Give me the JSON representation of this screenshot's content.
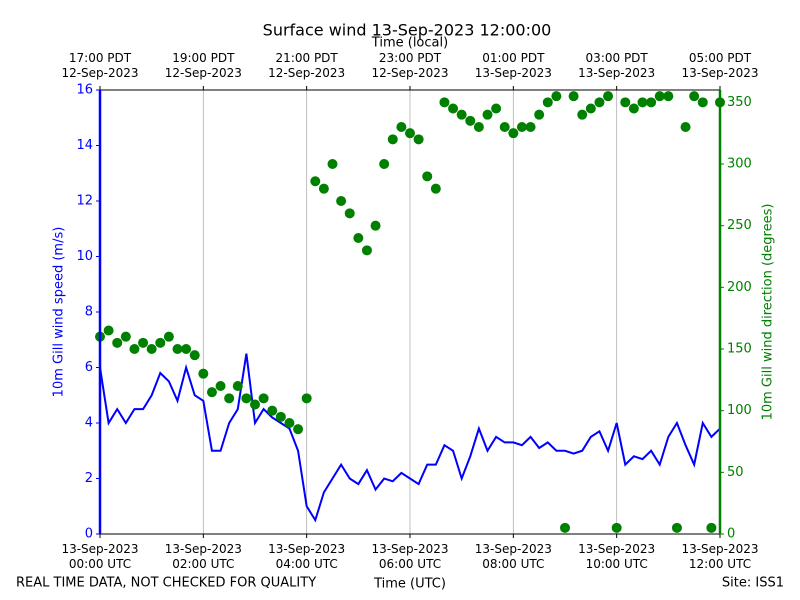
{
  "chart_data": {
    "type": "line",
    "title": "Surface wind 13-Sep-2023 12:00:00",
    "x_label": "Time (UTC)",
    "x2_label": "Time (local)",
    "y_label": "10m Gill wind speed (m/s)",
    "y2_label": "10m Gill wind direction (degrees)",
    "footer_left": "REAL TIME DATA, NOT CHECKED FOR QUALITY",
    "footer_right": "Site: ISS1",
    "grid": "x",
    "xlim": [
      "2023-09-13 00:00",
      "2023-09-13 12:00"
    ],
    "xticks": [
      {
        "value": "2023-09-13 00:00",
        "label": "13-Sep-2023\n00:00 UTC"
      },
      {
        "value": "2023-09-13 02:00",
        "label": "13-Sep-2023\n02:00 UTC"
      },
      {
        "value": "2023-09-13 04:00",
        "label": "13-Sep-2023\n04:00 UTC"
      },
      {
        "value": "2023-09-13 06:00",
        "label": "13-Sep-2023\n06:00 UTC"
      },
      {
        "value": "2023-09-13 08:00",
        "label": "13-Sep-2023\n08:00 UTC"
      },
      {
        "value": "2023-09-13 10:00",
        "label": "13-Sep-2023\n10:00 UTC"
      },
      {
        "value": "2023-09-13 12:00",
        "label": "13-Sep-2023\n12:00 UTC"
      }
    ],
    "x2ticks": [
      {
        "value": "2023-09-13 00:00",
        "label": "17:00 PDT\n12-Sep-2023"
      },
      {
        "value": "2023-09-13 02:00",
        "label": "19:00 PDT\n12-Sep-2023"
      },
      {
        "value": "2023-09-13 04:00",
        "label": "21:00 PDT\n12-Sep-2023"
      },
      {
        "value": "2023-09-13 06:00",
        "label": "23:00 PDT\n12-Sep-2023"
      },
      {
        "value": "2023-09-13 08:00",
        "label": "01:00 PDT\n13-Sep-2023"
      },
      {
        "value": "2023-09-13 10:00",
        "label": "03:00 PDT\n13-Sep-2023"
      },
      {
        "value": "2023-09-13 12:00",
        "label": "05:00 PDT\n13-Sep-2023"
      }
    ],
    "ylim": [
      0,
      16
    ],
    "yticks": [
      0,
      2,
      4,
      6,
      8,
      10,
      12,
      14,
      16
    ],
    "y_color": "#0000ff",
    "y2lim": [
      0,
      360
    ],
    "y2ticks": [
      0,
      50,
      100,
      150,
      200,
      250,
      300,
      350
    ],
    "y2_color": "#008000",
    "x": [
      "2023-09-13 00:00",
      "2023-09-13 00:10",
      "2023-09-13 00:20",
      "2023-09-13 00:30",
      "2023-09-13 00:40",
      "2023-09-13 00:50",
      "2023-09-13 01:00",
      "2023-09-13 01:10",
      "2023-09-13 01:20",
      "2023-09-13 01:30",
      "2023-09-13 01:40",
      "2023-09-13 01:50",
      "2023-09-13 02:00",
      "2023-09-13 02:10",
      "2023-09-13 02:20",
      "2023-09-13 02:30",
      "2023-09-13 02:40",
      "2023-09-13 02:50",
      "2023-09-13 03:00",
      "2023-09-13 03:10",
      "2023-09-13 03:20",
      "2023-09-13 03:30",
      "2023-09-13 03:40",
      "2023-09-13 03:50",
      "2023-09-13 04:00",
      "2023-09-13 04:10",
      "2023-09-13 04:20",
      "2023-09-13 04:30",
      "2023-09-13 04:40",
      "2023-09-13 04:50",
      "2023-09-13 05:00",
      "2023-09-13 05:10",
      "2023-09-13 05:20",
      "2023-09-13 05:30",
      "2023-09-13 05:40",
      "2023-09-13 05:50",
      "2023-09-13 06:00",
      "2023-09-13 06:10",
      "2023-09-13 06:20",
      "2023-09-13 06:30",
      "2023-09-13 06:40",
      "2023-09-13 06:50",
      "2023-09-13 07:00",
      "2023-09-13 07:10",
      "2023-09-13 07:20",
      "2023-09-13 07:30",
      "2023-09-13 07:40",
      "2023-09-13 07:50",
      "2023-09-13 08:00",
      "2023-09-13 08:10",
      "2023-09-13 08:20",
      "2023-09-13 08:30",
      "2023-09-13 08:40",
      "2023-09-13 08:50",
      "2023-09-13 09:00",
      "2023-09-13 09:10",
      "2023-09-13 09:20",
      "2023-09-13 09:30",
      "2023-09-13 09:40",
      "2023-09-13 09:50",
      "2023-09-13 10:00",
      "2023-09-13 10:10",
      "2023-09-13 10:20",
      "2023-09-13 10:30",
      "2023-09-13 10:40",
      "2023-09-13 10:50",
      "2023-09-13 11:00",
      "2023-09-13 11:10",
      "2023-09-13 11:20",
      "2023-09-13 11:30",
      "2023-09-13 11:40",
      "2023-09-13 11:50",
      "2023-09-13 12:00"
    ],
    "series": [
      {
        "name": "10m Gill wind speed",
        "color": "#0000ff",
        "kind": "line",
        "values": [
          6.0,
          4.0,
          4.5,
          4.0,
          4.5,
          4.5,
          5.0,
          5.8,
          5.5,
          4.8,
          6.0,
          5.0,
          4.8,
          3.0,
          3.0,
          4.0,
          4.5,
          6.5,
          4.0,
          4.5,
          4.2,
          4.0,
          3.8,
          3.0,
          1.0,
          0.5,
          1.5,
          2.0,
          2.5,
          2.0,
          1.8,
          2.3,
          1.6,
          2.0,
          1.9,
          2.2,
          2.0,
          1.8,
          2.5,
          2.5,
          3.2,
          3.0,
          2.0,
          2.8,
          3.8,
          3.0,
          3.5,
          3.3,
          3.3,
          3.2,
          3.5,
          3.1,
          3.3,
          3.0,
          3.0,
          2.9,
          3.0,
          3.5,
          3.7,
          3.0,
          4.0,
          2.5,
          2.8,
          2.7,
          3.0,
          2.5,
          3.5,
          4.0,
          3.2,
          2.5,
          4.0,
          3.5,
          3.8
        ]
      },
      {
        "name": "10m Gill wind direction",
        "color": "#008000",
        "kind": "scatter",
        "axis": "y2",
        "values": [
          160,
          165,
          155,
          160,
          150,
          155,
          150,
          155,
          160,
          150,
          150,
          145,
          130,
          115,
          120,
          110,
          120,
          110,
          105,
          110,
          100,
          95,
          90,
          85,
          110,
          286,
          280,
          300,
          270,
          260,
          240,
          230,
          250,
          300,
          320,
          330,
          325,
          320,
          290,
          280,
          350,
          345,
          340,
          335,
          330,
          340,
          345,
          330,
          325,
          330,
          330,
          340,
          350,
          355,
          5,
          355,
          340,
          345,
          350,
          355,
          5,
          350,
          345,
          350,
          350,
          355,
          355,
          5,
          330,
          355,
          350,
          5,
          350
        ]
      }
    ]
  }
}
